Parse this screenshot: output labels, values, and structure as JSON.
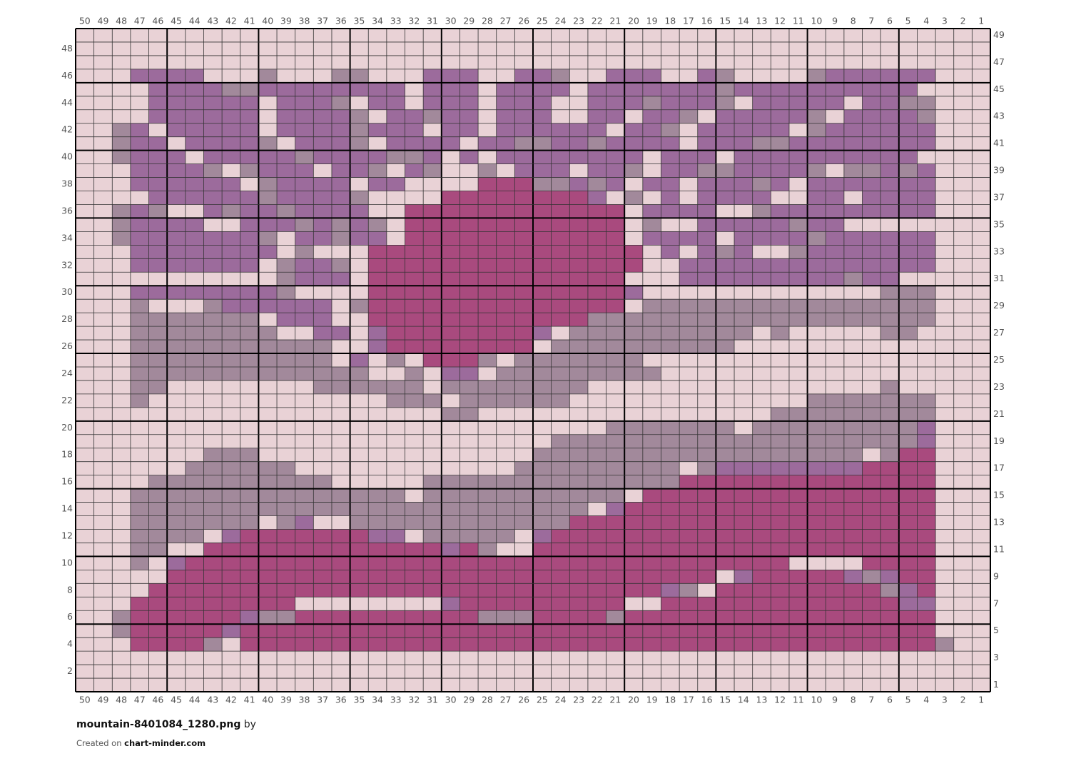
{
  "column_labels": [
    50,
    49,
    48,
    47,
    46,
    45,
    44,
    43,
    42,
    41,
    40,
    39,
    38,
    37,
    36,
    35,
    34,
    33,
    32,
    31,
    30,
    29,
    28,
    27,
    26,
    25,
    24,
    23,
    22,
    21,
    20,
    19,
    18,
    17,
    16,
    15,
    14,
    13,
    12,
    11,
    10,
    9,
    8,
    7,
    6,
    5,
    4,
    3,
    2,
    1
  ],
  "row_labels": [
    49,
    48,
    47,
    46,
    45,
    44,
    43,
    42,
    41,
    40,
    39,
    38,
    37,
    36,
    35,
    34,
    33,
    32,
    31,
    30,
    29,
    28,
    27,
    26,
    25,
    24,
    23,
    22,
    21,
    20,
    19,
    18,
    17,
    16,
    15,
    14,
    13,
    12,
    11,
    10,
    9,
    8,
    7,
    6,
    5,
    4,
    3,
    2,
    1
  ],
  "footer": {
    "filename": "mountain-8401084_1280.png",
    "by": "by",
    "created_on": "Created on",
    "site": "chart-minder.com"
  },
  "palette": {
    "L": "#e9d2d6",
    "P": "#9c6b9c",
    "G": "#a2899b",
    "M": "#a94a7e"
  },
  "pattern": [
    "LLLLLLLLLLLLLLLLLLLLLLLLLLLLLLLLLLLLLLLLLLLLLLLLLL",
    "LLLLLLLLLLLLLLLLLLLLLLLLLLLLLLLLLLLLLLLLLLLLLLLLLL",
    "LLLLLLLLLLLLLLLLLLLLLLLLLLLLLLLLLLLLLLLLLLLLLLLLLL",
    "LLLPPPPLLLGLLLGGLLLPPPLLPPGLLPPPLLPGLLLLGPPPPPPLLL",
    "LLLLPPPPGGPPPPPPPPLPPPLPPPPLPPPPPPPGPPPPPPPPPPLLLL",
    "LLLLPPPPPPLPPPGLPPLPPPLPPPLLPPPGPPPGLPPPPPLPPGGLLL",
    "LLLLPPPPPPLPPPPGLPPGPPLPPPLLPPLPPGLPPPPPGLPPPPGLLL",
    "LLGPLPPPPPLPPPPGPPPLPPLPPPPPPLPPGLPPPPPLGPPPPPPLLL",
    "LLGPPLPPPPGLPPPGLPPPPLPPGGPPGPPPPLPPPGGPPPPPPPPLLL",
    "LLGPPPLPPPPPGPPPPGGPLPLPPPPPPPPLPPPLPPPPPPPPPPLLLL",
    "LLLPPPPGLGPPPLPPGLPGLLGLPPPLPPGLPPGGPPPPGLGGPGPLLL",
    "LLLPPPPPPLGPPPPLPPLLLLMMMGGPGPLPPLPPPGPLPPPPPPPLLL",
    "LLLLPPPPPPGPPPPGLLLLMMMMMMMMPLGLPLPPPPLLPPLPPPPLLL",
    "LLGPGLLPGPPGPPPPLLMMMMMMMMMMMMLPPPPLLGPPPPPPPPPLLL",
    "LLGPPPPLLPPPGPGPGLMMMMMMMMMMMMLGLLPPPPPGPPLLLLLLLL",
    "LLGPPPPPPPGLPPGPPLMMMMMMMMMMMMLPPPPLPPPPGPPPPPPLLL",
    "LLLPPPPPPPPLGLLLMMMMMMMMMMMMMMMLPLPGPLLGPPPPPPPLLL",
    "LLLPPPPPPPLGPPGLMMMMMMMMMMMMMMMLLPPPPPPPPPPPPPPLLL",
    "LLLLLLLLLLLGPPPLMMMMMMMMMMMMMMLLLPPPPPPPPPGPPLLLLL",
    "LLLPPPPPPPPGLLLLMMMMMMMMMMMMMMPLLLLLLLLLLLLLGGGLLL",
    "LLLGLLLGPPPPPPLGMMMMMMMMMMMMMMLGGGGGGGGGGGGGGGGLLL",
    "LLLGGGGGGGLPPPLLMMMMMMMMMMMMGGGGGGGGGGGGGGGGGGGLLL",
    "LLLGGGGGGGGLLPPLPMMMMMMMMPLGGGGGGGGGGLGLLLLLGGLLLL",
    "LLLGGGGGGGGGGGLLPMMMMMMMMLGGGGGGGGGGLLLLLLLLLLLLLL",
    "LLLGGGGGGGGGGGLPLGLMMMGLGGGGGGGLLLLLLLLLLLLLLLLLLL",
    "LLLGGGGGGGGGGGGGLLGLPPLGGGGGGGGGLLLLLLLLLLLLLLLLLL",
    "LLLGGLLLLLLLLGGGGGGLGGGGGGGGLLLLLLLLLLLLLLLLGLLLLL",
    "LLLGLLLLLLLLLLLLLGGGLGGGGGGLLLLLLLLLLLLLGGGGGGGLLL",
    "LLLLLLLLLLLLLLLLLLLLGGLLLLLLLLLLLLLLLLGGGGGGGGGLLL",
    "LLLLLLLLLLLLLLLLLLLLLLLLLLLLLGGGGGGGLGGGGGGGGGPLLL",
    "LLLLLLLLLLLLLLLLLLLLLLLLLLGGGGGGGGGGGGGGGGGGGGPLLL",
    "LLLLLLLGGGLLLLLLLLLLLLLLLGGGGGGGGGGGGGGGGGGLGMMLLL",
    "LLLLLLGGGGGGLLLLLLLLLLLLGGGGGGGGGLGPPPPPPPPMMMMLLL",
    "LLLLGGGGGGGGGGLLLLLGGGGGGGGGGGGGGMMMMMMMMMMMMMMLLL",
    "LLLGGGGGGGGGGGGGGGLGGGGGGGGGGGLMMMMMMMMMMMMMMMMLLL",
    "LLLGGGGGGGGGGGGGGGGGGGGGGGGGLPMMMMMMMMMMMMMMMMMLLL",
    "LLLGGGGGGGLGPLLGGGGGGGGGGGGMMMMMMMMMMMMMMMMMMMMLLL",
    "LLLGGGGLPMMMMMMMPPLGGGGGLPMMMMMMMMMMMMMMMMMMMMMLLL",
    "LLLGGLLMMMMMMMMMMMMMPMGLLMMMMMMMMMMMMMMMMMMMMMMLLL",
    "LLLGLPMMMMMMMMMMMMMMMMMMMMMMMMMMMMMMMMMLLLLMMMMLLL",
    "LLLLLMMMMMMMMMMMMMMMMMMMMMMMMMMMMMMLPMMMMMPGPMMLLL",
    "LLLLMMMMMMMMMMMMMMMMMMMMMMMMMMMMPGLMMMMMMMMMGPMLLL",
    "LLLMMMMMMMMMLLLLLLLLPMMMMMMMMMLLMMMMMMMMMMMMMPPLLL",
    "LLGMMMMMMPGGMMMMMMMMMMGGGMMMMGMMMMMMMMMMMMMMMMMLLL",
    "LLGMMMMMPMMMMMMMMMMMMMMMMMMMMMMMMMMMMMMMMMMMMMMLLL",
    "LLLMMMMGLMMMMMMMMMMMMMMMMMMMMMMMMMMMMMMMMMMMMMMGLL",
    "LLLLLLLLLLLLLLLLLLLLLLLLLLLLLLLLLLLLLLLLLLLLLLLLLL",
    "LLLLLLLLLLLLLLLLLLLLLLLLLLLLLLLLLLLLLLLLLLLLLLLLLL",
    "LLLLLLLLLLLLLLLLLLLLLLLLLLLLLLLLLLLLLLLLLLLLLLLLLL"
  ]
}
